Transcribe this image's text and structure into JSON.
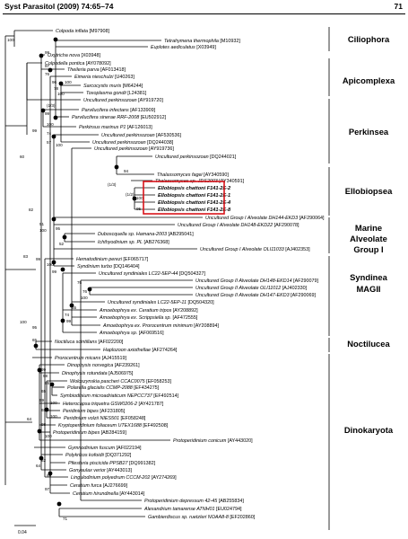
{
  "header": {
    "citation": "Syst Parasitol (2009) 74:65–74",
    "page_number": "71"
  },
  "scale_label": "0.04",
  "taxa": [
    {
      "name": "Colpoda inflata",
      "acc": "[M97908]"
    },
    {
      "name": "Tetrahymena thermophila",
      "acc": "[M10932]"
    },
    {
      "name": "Euplotes aediculatus",
      "acc": "[X03949]"
    },
    {
      "name": "Oxytricha nova",
      "acc": "[X03948]"
    },
    {
      "name": "Colpodella pontica",
      "acc": "[AY078092]"
    },
    {
      "name": "Theileria parva",
      "acc": "[AF013418]"
    },
    {
      "name": "Eimeria nieschulzi",
      "acc": "[U40263]"
    },
    {
      "name": "Sarcocystis muris",
      "acc": "[M64244]"
    },
    {
      "name": "Toxoplasma gondii",
      "acc": "[L24381]"
    },
    {
      "name": "Uncultured perkinsozoan",
      "acc": "[AY919720]"
    },
    {
      "name": "Parvilucifera infectans",
      "acc": "[AF133909]"
    },
    {
      "name": "Parvilucifera sinerae RRF-2008",
      "acc": "[EU502912]"
    },
    {
      "name": "Perkinsus marinus P1",
      "acc": "[AF126013]"
    },
    {
      "name": "Uncultured perkinsozoan",
      "acc": "[AF530536]"
    },
    {
      "name": "Uncultured perkinsozoan",
      "acc": "[DQ244038]"
    },
    {
      "name": "Uncultured perkinsozoan",
      "acc": "[AY919736]"
    },
    {
      "name": "Uncultured perkinsozoan",
      "acc": "[DQ244021]"
    },
    {
      "name": "Thalassomyces fagei",
      "acc": "[AY340590]"
    },
    {
      "name": "Thalassomyces sp. JDS2003",
      "acc": "[AY340591]"
    },
    {
      "name": "Ellobiopsis chattoni F141-2E-2",
      "acc": ""
    },
    {
      "name": "Ellobiopsis chattoni F141-2E-1",
      "acc": ""
    },
    {
      "name": "Ellobiopsis chattoni F141-2E-4",
      "acc": ""
    },
    {
      "name": "Ellobiopsis chattoni F141-2E-8",
      "acc": ""
    },
    {
      "name": "Uncultured Group I Alveolate DH144-EKD3",
      "acc": "[AF290064]"
    },
    {
      "name": "Uncultured Group I Alveolate DH148-EKD22",
      "acc": "[AF290078]"
    },
    {
      "name": "Duboscquella sp. Hamana-2003",
      "acc": "[AB295041]"
    },
    {
      "name": "Ichthyodinium sp. PL",
      "acc": "[AB276368]"
    },
    {
      "name": "Uncultured Group I Alveolate OLI11033",
      "acc": "[AJ402353]"
    },
    {
      "name": "Hematodinium perezi",
      "acc": "[EF065717]"
    },
    {
      "name": "Syndinium turbo",
      "acc": "[DQ146404]"
    },
    {
      "name": "Uncultured syndiniales LC22-5EP-44",
      "acc": "[DQ504327]"
    },
    {
      "name": "Uncultured Group II Alveolate DH148-EKD14",
      "acc": "[AF290079]"
    },
    {
      "name": "Uncultured Group II Alveolate OLI11012",
      "acc": "[AJ402330]"
    },
    {
      "name": "Uncultured Group II Alveolate DH147-EKD3",
      "acc": "[AF290069]"
    },
    {
      "name": "Uncultured syndiniales LC22-5EP-11",
      "acc": "[DQ504320]"
    },
    {
      "name": "Amoebophrya ex. Ceratium tripos",
      "acc": "[AY208892]"
    },
    {
      "name": "Amoebophrya ex. Scrippsiella sp.",
      "acc": "[AF472555]"
    },
    {
      "name": "Amoebophrya ex. Prorocentrum minimum",
      "acc": "[AY208894]"
    },
    {
      "name": "Amoebophrya sp.",
      "acc": "[AF069516]"
    },
    {
      "name": "Noctiluca scintillans",
      "acc": "[AF022200]"
    },
    {
      "name": "Haplozoon axiothellae",
      "acc": "[AF274264]"
    },
    {
      "name": "Prorocentrum micans",
      "acc": "[AJ415519]"
    },
    {
      "name": "Dinophysis norvegica",
      "acc": "[AF239261]"
    },
    {
      "name": "Dinophysis rotundata",
      "acc": "[AJ506975]"
    },
    {
      "name": "Woloszynskia pascheri CCAC0075",
      "acc": "[EF058253]"
    },
    {
      "name": "Polarella glacialis CCMP-2088",
      "acc": "[EF434275]"
    },
    {
      "name": "Symbiodinium microadriaticum NEPCC737",
      "acc": "[EF492514]"
    },
    {
      "name": "Heterocapsa triquetra GSW0206-2",
      "acc": "[AY421787]"
    },
    {
      "name": "Peridinium bipes",
      "acc": "[AF231805]"
    },
    {
      "name": "Peridinium volzii NIES501",
      "acc": "[EF058248]"
    },
    {
      "name": "Kryptoperidinium foliaceum UTEX1688",
      "acc": "[EF492508]"
    },
    {
      "name": "Protoperidinium bipes",
      "acc": "[AB284159]"
    },
    {
      "name": "Protoperidinium conicum",
      "acc": "[AY443020]"
    },
    {
      "name": "Gymnodinium fuscum",
      "acc": "[AF022194]"
    },
    {
      "name": "Polykrikos kofoidii",
      "acc": "[DQ371292]"
    },
    {
      "name": "Pfiesteria piscicida PPSB27",
      "acc": "[DQ991382]"
    },
    {
      "name": "Gonyaulax verior",
      "acc": "[AY443013]"
    },
    {
      "name": "Lingulodinium polyedrum CCCM-202",
      "acc": "[AY274269]"
    },
    {
      "name": "Ceratium furca",
      "acc": "[AJ276699]"
    },
    {
      "name": "Ceratium hirundinella",
      "acc": "[AY443014]"
    },
    {
      "name": "Protoperidinium depressum 42-45",
      "acc": "[AB255834]"
    },
    {
      "name": "Alexandrium tamarense ATNH01",
      "acc": "[EU024794]"
    },
    {
      "name": "Gambierdiscus sp. ruetzleri NOAA8-8",
      "acc": "[EF202860]"
    }
  ],
  "groups": [
    {
      "lines": [
        "Ciliophora"
      ]
    },
    {
      "lines": [
        "Apicomplexa"
      ]
    },
    {
      "lines": [
        "Perkinsea"
      ]
    },
    {
      "lines": [
        "Ellobiopsea"
      ]
    },
    {
      "lines": [
        "Marine",
        "Alveolate",
        "Group I"
      ]
    },
    {
      "lines": [
        "Syndinea",
        "MAGII"
      ]
    },
    {
      "lines": [
        "Noctilucea"
      ]
    },
    {
      "lines": [
        "Dinokaryota"
      ]
    }
  ],
  "bootstrap_values": [
    "100",
    "99",
    "97",
    "76",
    "96",
    "100",
    "78",
    "100",
    "(1/3)",
    "99",
    "99",
    "100",
    "74",
    "57",
    "100",
    "60",
    "94",
    "(1/3)",
    "(1/2)",
    "100",
    "95",
    "82",
    "51",
    "100",
    "95",
    "52",
    "83",
    "99",
    "100",
    "99",
    "76",
    "76",
    "100",
    "55",
    "74",
    "99",
    "100",
    "95",
    "65",
    "99",
    "98",
    "95",
    "65",
    "59",
    "100",
    "65",
    "100",
    "64",
    "98",
    "100",
    "82",
    "64",
    "99",
    "97",
    "71"
  ],
  "highlight_color": "#d8141b"
}
